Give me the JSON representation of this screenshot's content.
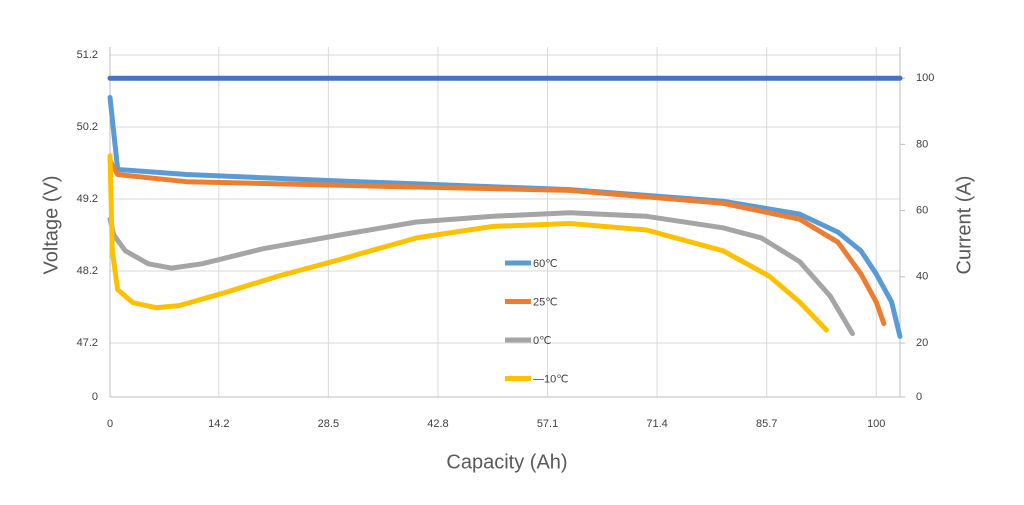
{
  "chart_data": {
    "type": "line",
    "xlabel": "Capacity (Ah)",
    "ylabel": "Voltage (V)",
    "y2label": "Current (A)",
    "xlim": [
      0,
      103.1
    ],
    "xticks": [
      0,
      14.2,
      28.5,
      42.8,
      57.1,
      71.4,
      85.7,
      100
    ],
    "ylim": [
      0,
      51.2
    ],
    "yticks": [
      0,
      47.2,
      48.2,
      49.2,
      50.2,
      51.2
    ],
    "y_axis_break": true,
    "y2lim": [
      0,
      107
    ],
    "y2ticks": [
      0,
      20,
      40,
      60,
      80,
      100
    ],
    "grid": true,
    "legend": "center",
    "series": [
      {
        "color": "#4472c4",
        "axis": "y2",
        "x": [
          0,
          103.1
        ],
        "values": [
          100,
          100
        ]
      },
      {
        "name": "60℃",
        "color": "#5b9bd5",
        "x": [
          0,
          1,
          10,
          30,
          60,
          80,
          90,
          95,
          98,
          100,
          102,
          103.1
        ],
        "values": [
          50.61,
          49.61,
          49.54,
          49.45,
          49.33,
          49.17,
          48.99,
          48.74,
          48.48,
          48.16,
          47.77,
          47.29
        ]
      },
      {
        "name": "25℃",
        "color": "#ed7d31",
        "x": [
          0,
          1,
          10,
          30,
          60,
          80,
          90,
          95,
          98,
          100,
          101
        ],
        "values": [
          49.73,
          49.54,
          49.44,
          49.39,
          49.32,
          49.14,
          48.92,
          48.6,
          48.16,
          47.77,
          47.47
        ]
      },
      {
        "name": "0℃",
        "color": "#a5a5a5",
        "x": [
          0,
          0.5,
          2,
          5,
          8,
          12,
          20,
          30,
          40,
          50,
          60,
          70,
          80,
          85,
          90,
          94,
          96.9
        ],
        "values": [
          48.92,
          48.7,
          48.48,
          48.3,
          48.24,
          48.3,
          48.51,
          48.7,
          48.88,
          48.96,
          49.01,
          48.96,
          48.8,
          48.66,
          48.33,
          47.85,
          47.33
        ]
      },
      {
        "name": "—10℃",
        "color": "#ffc000",
        "x": [
          0,
          0.3,
          1,
          3,
          6,
          9,
          15,
          22,
          30,
          40,
          50,
          60,
          70,
          80,
          86,
          90,
          93.5
        ],
        "values": [
          49.8,
          48.48,
          47.94,
          47.76,
          47.69,
          47.72,
          47.9,
          48.13,
          48.36,
          48.66,
          48.82,
          48.86,
          48.77,
          48.48,
          48.13,
          47.77,
          47.38
        ]
      }
    ]
  }
}
